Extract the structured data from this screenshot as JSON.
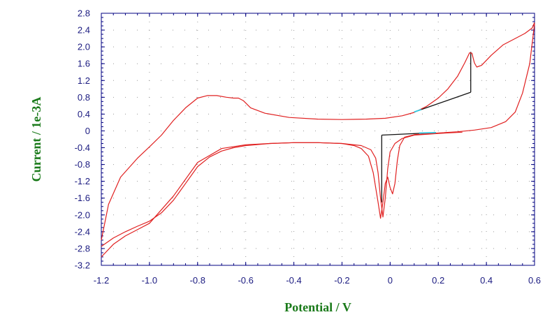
{
  "chart_data": {
    "type": "line",
    "xlabel": "Potential / V",
    "ylabel": "Current / 1e-3A",
    "xlim": [
      -1.2,
      0.6
    ],
    "ylim": [
      -3.2,
      2.8
    ],
    "x_ticks": [
      "-1.2",
      "-1.0",
      "-0.8",
      "-0.6",
      "-0.4",
      "-0.2",
      "0",
      "0.2",
      "0.4",
      "0.6"
    ],
    "y_ticks": [
      "2.8",
      "2.4",
      "2.0",
      "1.6",
      "1.2",
      "0.8",
      "0.4",
      "0",
      "-0.4",
      "-0.8",
      "-1.2",
      "-1.6",
      "-2.0",
      "-2.4",
      "-2.8",
      "-3.2"
    ],
    "grid": true,
    "colors": {
      "trace": "#e02020",
      "baseline": "#111111",
      "highlight": "#30c8e0",
      "axis_title": "#1a7a1a",
      "tick_label": "#1a1a80"
    },
    "series": [
      {
        "x": [
          -1.2,
          -1.17,
          -1.12,
          -1.05,
          -1.0,
          -0.95,
          -0.9,
          -0.85,
          -0.8,
          -0.76,
          -0.72,
          -0.68,
          -0.65,
          -0.63,
          -0.61,
          -0.58,
          -0.52,
          -0.42,
          -0.3,
          -0.2,
          -0.1,
          -0.02,
          0.05,
          0.1,
          0.15,
          0.2,
          0.24,
          0.28,
          0.31,
          0.33,
          0.34,
          0.35,
          0.36,
          0.38,
          0.42,
          0.47,
          0.52,
          0.56,
          0.59,
          0.6
        ],
        "y": [
          -2.6,
          -1.75,
          -1.1,
          -0.65,
          -0.38,
          -0.1,
          0.25,
          0.55,
          0.78,
          0.84,
          0.84,
          0.8,
          0.78,
          0.78,
          0.72,
          0.55,
          0.42,
          0.32,
          0.28,
          0.27,
          0.28,
          0.3,
          0.36,
          0.44,
          0.58,
          0.78,
          1.0,
          1.3,
          1.62,
          1.86,
          1.85,
          1.62,
          1.52,
          1.56,
          1.8,
          2.05,
          2.2,
          2.32,
          2.45,
          2.58
        ]
      },
      {
        "x": [
          0.6,
          0.58,
          0.55,
          0.52,
          0.48,
          0.42,
          0.35,
          0.28,
          0.2,
          0.15,
          0.1,
          0.06,
          0.04,
          0.03,
          0.02,
          0.01,
          0.0,
          -0.01,
          -0.02,
          -0.03,
          -0.04,
          -0.05,
          -0.07,
          -0.09,
          -0.12,
          -0.15,
          -0.2,
          -0.3,
          -0.4,
          -0.5,
          -0.6,
          -0.7,
          -0.8,
          -0.9,
          -1.0,
          -1.05,
          -1.1,
          -1.15,
          -1.2
        ],
        "y": [
          2.55,
          1.6,
          0.9,
          0.45,
          0.22,
          0.08,
          0.02,
          -0.02,
          -0.05,
          -0.07,
          -0.09,
          -0.15,
          -0.35,
          -0.7,
          -1.25,
          -1.5,
          -1.35,
          -1.1,
          -1.25,
          -1.7,
          -2.08,
          -1.7,
          -1.0,
          -0.6,
          -0.42,
          -0.35,
          -0.3,
          -0.28,
          -0.28,
          -0.3,
          -0.33,
          -0.42,
          -0.75,
          -1.55,
          -2.2,
          -2.35,
          -2.5,
          -2.7,
          -3.0
        ]
      },
      {
        "x": [
          -1.2,
          -1.15,
          -1.1,
          -1.05,
          -1.0,
          -0.95,
          -0.9,
          -0.85,
          -0.8,
          -0.75,
          -0.7,
          -0.65,
          -0.6,
          -0.5,
          -0.4,
          -0.3,
          -0.2,
          -0.12,
          -0.08,
          -0.06,
          -0.05,
          -0.04,
          -0.03,
          -0.02,
          -0.01,
          0.0,
          0.02,
          0.05,
          0.1,
          0.2,
          0.3
        ],
        "y": [
          -2.75,
          -2.55,
          -2.4,
          -2.27,
          -2.15,
          -1.95,
          -1.65,
          -1.25,
          -0.85,
          -0.62,
          -0.48,
          -0.4,
          -0.35,
          -0.3,
          -0.28,
          -0.28,
          -0.3,
          -0.35,
          -0.45,
          -0.65,
          -1.0,
          -1.6,
          -2.05,
          -1.6,
          -0.9,
          -0.5,
          -0.3,
          -0.18,
          -0.1,
          -0.06,
          -0.03
        ]
      }
    ],
    "baseline_segments": [
      {
        "x": [
          0.1,
          0.335
        ],
        "y": [
          0.45,
          0.92
        ]
      },
      {
        "x": [
          0.335,
          0.335
        ],
        "y": [
          0.92,
          1.88
        ]
      },
      {
        "x": [
          -0.035,
          -0.035
        ],
        "y": [
          -1.7,
          -0.1
        ]
      },
      {
        "x": [
          -0.035,
          0.19
        ],
        "y": [
          -0.1,
          -0.04
        ]
      }
    ],
    "highlight_segments": [
      {
        "x": [
          0.1,
          0.13
        ],
        "y": [
          0.45,
          0.51
        ]
      },
      {
        "x": [
          0.12,
          0.19
        ],
        "y": [
          -0.05,
          -0.04
        ]
      }
    ]
  }
}
